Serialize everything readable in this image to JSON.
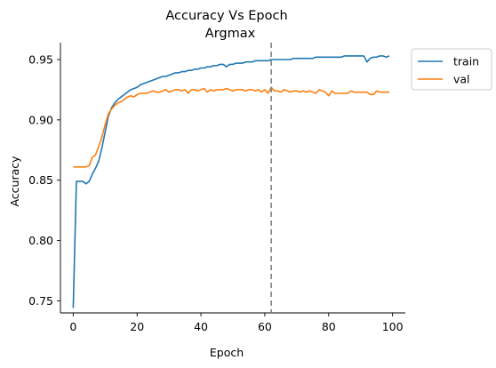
{
  "chart_data": {
    "type": "line",
    "title": "Accuracy Vs Epoch",
    "subtitle": "Argmax",
    "xlabel": "Epoch",
    "ylabel": "Accuracy",
    "xlim": [
      -4,
      104
    ],
    "ylim": [
      0.74,
      0.964
    ],
    "xticks": [
      0,
      20,
      40,
      60,
      80,
      100
    ],
    "yticks": [
      0.75,
      0.8,
      0.85,
      0.9,
      0.95
    ],
    "ytick_labels": [
      "0.75",
      "0.80",
      "0.85",
      "0.90",
      "0.95"
    ],
    "grid": false,
    "legend_position": "outside-top-right",
    "vline": {
      "x": 62,
      "color": "#7f7f7f",
      "style": "dashed"
    },
    "series": [
      {
        "name": "train",
        "color": "#1f77b4",
        "values": [
          0.744,
          0.849,
          0.849,
          0.849,
          0.847,
          0.849,
          0.855,
          0.86,
          0.866,
          0.877,
          0.89,
          0.903,
          0.91,
          0.914,
          0.917,
          0.919,
          0.921,
          0.923,
          0.925,
          0.926,
          0.927,
          0.929,
          0.93,
          0.931,
          0.932,
          0.933,
          0.934,
          0.935,
          0.936,
          0.936,
          0.937,
          0.938,
          0.939,
          0.939,
          0.94,
          0.94,
          0.941,
          0.941,
          0.942,
          0.942,
          0.943,
          0.943,
          0.944,
          0.944,
          0.945,
          0.945,
          0.946,
          0.946,
          0.944,
          0.946,
          0.946,
          0.947,
          0.947,
          0.947,
          0.948,
          0.948,
          0.948,
          0.949,
          0.949,
          0.949,
          0.949,
          0.949,
          0.95,
          0.95,
          0.95,
          0.95,
          0.95,
          0.95,
          0.95,
          0.951,
          0.951,
          0.951,
          0.951,
          0.951,
          0.951,
          0.951,
          0.952,
          0.952,
          0.952,
          0.952,
          0.952,
          0.952,
          0.952,
          0.952,
          0.952,
          0.953,
          0.953,
          0.953,
          0.953,
          0.953,
          0.953,
          0.953,
          0.948,
          0.951,
          0.952,
          0.952,
          0.953,
          0.953,
          0.952,
          0.953
        ]
      },
      {
        "name": "val",
        "color": "#ff7f0e",
        "values": [
          0.861,
          0.861,
          0.861,
          0.861,
          0.861,
          0.862,
          0.869,
          0.871,
          0.878,
          0.886,
          0.896,
          0.905,
          0.909,
          0.912,
          0.914,
          0.915,
          0.917,
          0.919,
          0.92,
          0.919,
          0.921,
          0.922,
          0.922,
          0.922,
          0.923,
          0.924,
          0.923,
          0.923,
          0.924,
          0.925,
          0.923,
          0.924,
          0.925,
          0.925,
          0.924,
          0.925,
          0.922,
          0.925,
          0.925,
          0.924,
          0.925,
          0.926,
          0.923,
          0.925,
          0.924,
          0.925,
          0.925,
          0.925,
          0.926,
          0.925,
          0.924,
          0.925,
          0.925,
          0.925,
          0.924,
          0.925,
          0.925,
          0.924,
          0.925,
          0.923,
          0.925,
          0.922,
          0.927,
          0.924,
          0.924,
          0.923,
          0.925,
          0.924,
          0.923,
          0.924,
          0.924,
          0.923,
          0.924,
          0.923,
          0.924,
          0.923,
          0.922,
          0.925,
          0.924,
          0.923,
          0.92,
          0.924,
          0.922,
          0.922,
          0.922,
          0.922,
          0.922,
          0.924,
          0.923,
          0.923,
          0.923,
          0.923,
          0.923,
          0.921,
          0.921,
          0.924,
          0.923,
          0.923,
          0.923,
          0.923
        ]
      }
    ]
  }
}
